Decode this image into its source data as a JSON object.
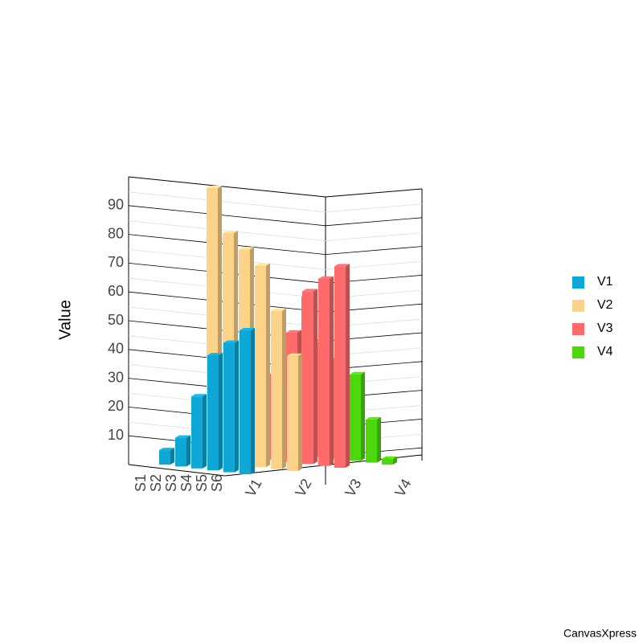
{
  "chart_data": {
    "type": "bar",
    "y_label": "Value",
    "categories": [
      "S1",
      "S2",
      "S3",
      "S4",
      "S5",
      "S6"
    ],
    "series": [
      {
        "name": "V1",
        "color": "#0fa8d6",
        "values": [
          5,
          10,
          25,
          40,
          45,
          50
        ]
      },
      {
        "name": "V2",
        "color": "#fdd38a",
        "values": [
          95,
          80,
          75,
          70,
          55,
          40
        ]
      },
      {
        "name": "V3",
        "color": "#ff6b6b",
        "values": [
          25,
          30,
          45,
          60,
          65,
          70
        ]
      },
      {
        "name": "V4",
        "color": "#4cd80a",
        "values": [
          55,
          40,
          35,
          30,
          15,
          2
        ]
      }
    ],
    "ylim": [
      0,
      100
    ],
    "yticks": [
      10,
      20,
      30,
      40,
      50,
      60,
      70,
      80,
      90
    ],
    "grid": true,
    "legend": "right"
  },
  "footer": "CanvasXpress"
}
